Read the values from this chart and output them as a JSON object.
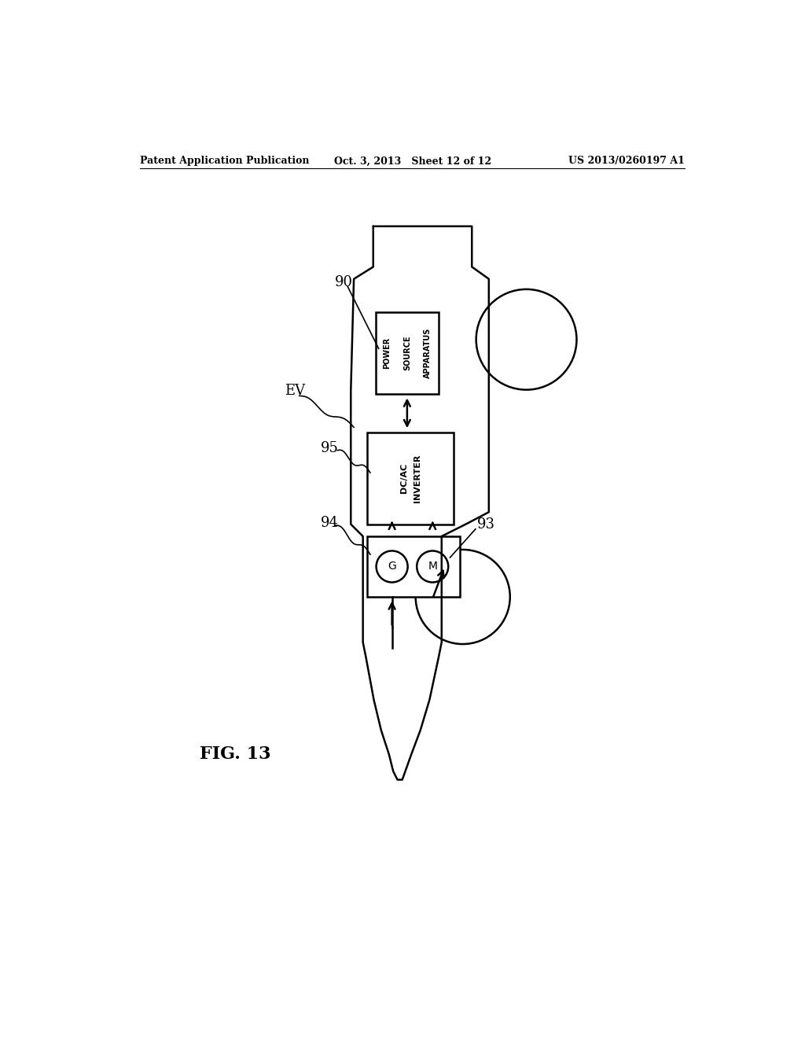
{
  "header_left": "Patent Application Publication",
  "header_center": "Oct. 3, 2013   Sheet 12 of 12",
  "header_right": "US 2013/0260197 A1",
  "fig_label": "FIG. 13",
  "bg_color": "#ffffff",
  "line_color": "#000000",
  "label_EV": "EV",
  "label_90": "90",
  "label_95": "95",
  "label_94": "94",
  "label_93": "93",
  "box_power_text": [
    "POWER",
    "SOURCE",
    "APPARATUS"
  ],
  "box_inverter_text": [
    "DC/AC",
    "INVERTER"
  ],
  "circle_G": "G",
  "circle_M": "M"
}
